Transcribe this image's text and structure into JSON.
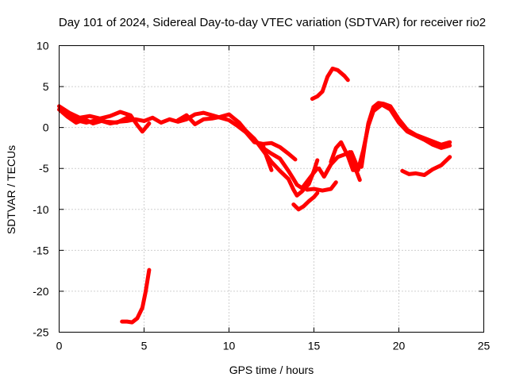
{
  "chart_data": {
    "type": "scatter",
    "title": "Day 101 of 2024, Sidereal Day-to-day VTEC variation (SDTVAR) for receiver rio2",
    "xlabel": "GPS time / hours",
    "ylabel": "SDTVAR / TECUs",
    "xlim": [
      0,
      25
    ],
    "ylim": [
      -25,
      10
    ],
    "xticks": [
      0,
      5,
      10,
      15,
      20,
      25
    ],
    "yticks": [
      -25,
      -20,
      -15,
      -10,
      -5,
      0,
      5,
      10
    ],
    "grid": true,
    "color": "#ff0000",
    "series": [
      {
        "name": "seg-1",
        "points": [
          [
            0,
            2.2
          ],
          [
            0.5,
            1.3
          ],
          [
            1,
            0.6
          ],
          [
            1.5,
            1.0
          ],
          [
            2,
            0.5
          ],
          [
            2.5,
            0.8
          ],
          [
            3,
            0.5
          ],
          [
            3.5,
            0.7
          ],
          [
            4,
            0.8
          ],
          [
            4.5,
            1.0
          ],
          [
            5,
            0.8
          ]
        ]
      },
      {
        "name": "seg-2",
        "points": [
          [
            0,
            2.6
          ],
          [
            0.6,
            1.8
          ],
          [
            1.2,
            1.2
          ],
          [
            1.8,
            1.4
          ],
          [
            2.4,
            1.1
          ],
          [
            3,
            1.4
          ],
          [
            3.6,
            1.9
          ],
          [
            4.2,
            1.5
          ],
          [
            4.6,
            0.3
          ],
          [
            4.9,
            -0.5
          ],
          [
            5.3,
            0.5
          ]
        ]
      },
      {
        "name": "seg-3",
        "points": [
          [
            0.4,
            1.8
          ],
          [
            1,
            0.9
          ],
          [
            1.6,
            0.6
          ],
          [
            2.2,
            0.9
          ],
          [
            2.8,
            0.7
          ],
          [
            3.4,
            0.6
          ],
          [
            4,
            1.2
          ],
          [
            4.5,
            0.8
          ]
        ]
      },
      {
        "name": "seg-4",
        "points": [
          [
            5,
            0.8
          ],
          [
            5.5,
            1.2
          ],
          [
            6,
            0.6
          ],
          [
            6.5,
            1.0
          ],
          [
            7,
            0.7
          ],
          [
            7.5,
            1.0
          ],
          [
            8,
            1.6
          ],
          [
            8.5,
            1.8
          ],
          [
            9,
            1.5
          ],
          [
            9.5,
            1.2
          ],
          [
            10,
            0.9
          ],
          [
            10.5,
            0.2
          ],
          [
            11,
            -0.6
          ],
          [
            11.5,
            -1.5
          ],
          [
            12,
            -2.5
          ],
          [
            12.5,
            -3.2
          ],
          [
            13,
            -3.8
          ],
          [
            13.5,
            -5.3
          ],
          [
            13.8,
            -6.3
          ],
          [
            14,
            -7.0
          ],
          [
            14.3,
            -7.4
          ],
          [
            14.6,
            -6.6
          ],
          [
            15,
            -5.5
          ],
          [
            15.2,
            -5.0
          ]
        ]
      },
      {
        "name": "seg-5",
        "points": [
          [
            7,
            0.9
          ],
          [
            7.5,
            1.5
          ],
          [
            8,
            0.4
          ],
          [
            8.5,
            1.0
          ],
          [
            9,
            1.1
          ],
          [
            9.5,
            1.3
          ],
          [
            10,
            1.6
          ],
          [
            10.3,
            1.1
          ],
          [
            10.6,
            0.6
          ],
          [
            11,
            -0.4
          ],
          [
            11.5,
            -1.4
          ],
          [
            12,
            -2.8
          ],
          [
            12.5,
            -4.2
          ],
          [
            13,
            -5.3
          ],
          [
            13.5,
            -6.3
          ],
          [
            13.8,
            -7.6
          ],
          [
            14,
            -8.3
          ],
          [
            14.3,
            -7.8
          ],
          [
            14.7,
            -6.9
          ],
          [
            15,
            -5.3
          ],
          [
            15.2,
            -4.0
          ]
        ]
      },
      {
        "name": "seg-6",
        "points": [
          [
            10.5,
            0.6
          ],
          [
            11,
            -0.6
          ],
          [
            11.5,
            -1.8
          ],
          [
            12,
            -2.0
          ],
          [
            12.5,
            -1.9
          ],
          [
            13,
            -2.4
          ],
          [
            13.5,
            -3.2
          ],
          [
            13.9,
            -3.9
          ]
        ]
      },
      {
        "name": "seg-7",
        "points": [
          [
            12,
            -2.2
          ],
          [
            12.2,
            -3.5
          ],
          [
            12.5,
            -5.2
          ]
        ]
      },
      {
        "name": "seg-8",
        "points": [
          [
            13.8,
            -9.4
          ],
          [
            14.1,
            -10.0
          ],
          [
            14.4,
            -9.6
          ],
          [
            14.7,
            -9.0
          ],
          [
            15,
            -8.5
          ],
          [
            15.2,
            -8.0
          ]
        ]
      },
      {
        "name": "seg-9",
        "points": [
          [
            14.6,
            -7.6
          ],
          [
            15,
            -7.5
          ],
          [
            15.5,
            -7.7
          ],
          [
            16,
            -7.5
          ],
          [
            16.3,
            -6.7
          ]
        ]
      },
      {
        "name": "seg-10",
        "points": [
          [
            14.9,
            3.5
          ],
          [
            15.2,
            3.8
          ],
          [
            15.5,
            4.4
          ],
          [
            15.8,
            6.2
          ],
          [
            16.1,
            7.2
          ],
          [
            16.4,
            7.0
          ],
          [
            16.8,
            6.3
          ],
          [
            17,
            5.8
          ]
        ]
      },
      {
        "name": "seg-11",
        "points": [
          [
            15.3,
            -5.0
          ],
          [
            15.6,
            -6.0
          ],
          [
            16,
            -4.5
          ],
          [
            16.4,
            -3.6
          ],
          [
            16.8,
            -3.3
          ],
          [
            17.2,
            -3.0
          ],
          [
            17.5,
            -4.5
          ],
          [
            17.8,
            -4.8
          ],
          [
            18,
            -2.0
          ],
          [
            18.2,
            0.5
          ],
          [
            18.5,
            2.5
          ],
          [
            18.8,
            3.0
          ],
          [
            19.1,
            2.9
          ],
          [
            19.5,
            2.6
          ],
          [
            20,
            1.0
          ],
          [
            20.5,
            -0.3
          ],
          [
            21,
            -0.9
          ],
          [
            21.5,
            -1.3
          ],
          [
            22,
            -1.7
          ],
          [
            22.5,
            -2.1
          ],
          [
            23,
            -1.8
          ]
        ]
      },
      {
        "name": "seg-12",
        "points": [
          [
            16,
            -4.2
          ],
          [
            16.3,
            -2.5
          ],
          [
            16.6,
            -1.8
          ],
          [
            17,
            -3.5
          ],
          [
            17.3,
            -5.2
          ],
          [
            17.6,
            -5.2
          ],
          [
            17.9,
            -2.8
          ],
          [
            18.2,
            0.2
          ],
          [
            18.5,
            2.0
          ],
          [
            19,
            2.8
          ],
          [
            19.5,
            2.2
          ],
          [
            20,
            0.6
          ],
          [
            20.5,
            -0.5
          ],
          [
            21,
            -1.0
          ],
          [
            21.5,
            -1.5
          ],
          [
            22,
            -2.1
          ],
          [
            22.5,
            -2.5
          ],
          [
            23,
            -2.2
          ]
        ]
      },
      {
        "name": "seg-13",
        "points": [
          [
            17.1,
            -3.0
          ],
          [
            17.4,
            -4.8
          ],
          [
            17.7,
            -6.4
          ]
        ]
      },
      {
        "name": "seg-14",
        "points": [
          [
            20.2,
            -5.3
          ],
          [
            20.6,
            -5.7
          ],
          [
            21,
            -5.6
          ],
          [
            21.5,
            -5.8
          ],
          [
            22,
            -5.1
          ],
          [
            22.5,
            -4.6
          ],
          [
            23,
            -3.6
          ]
        ]
      },
      {
        "name": "seg-15",
        "points": [
          [
            3.7,
            -23.7
          ],
          [
            4.0,
            -23.7
          ],
          [
            4.3,
            -23.8
          ],
          [
            4.6,
            -23.3
          ],
          [
            4.9,
            -22.0
          ],
          [
            5.1,
            -20.0
          ],
          [
            5.3,
            -17.4
          ]
        ]
      }
    ]
  }
}
